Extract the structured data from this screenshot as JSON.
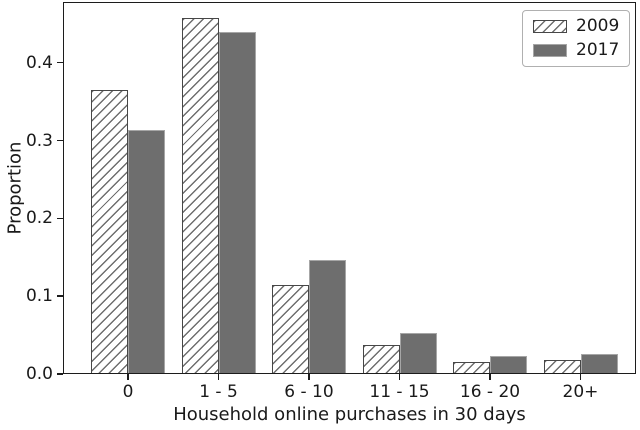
{
  "colors": {
    "spine": "#1c1c1c",
    "text": "#1a1a1a",
    "bar_2009_edge": "#474747",
    "hatch_line": "#6e6e6e",
    "bar_2017_fill": "#6e6e6e",
    "bar_2017_edge": "#a6a6a6",
    "legend_border": "#b0b0b0"
  },
  "chart_data": {
    "type": "bar",
    "title": "",
    "xlabel": "Household online purchases in 30 days",
    "ylabel": "Proportion",
    "categories": [
      "0",
      "1 - 5",
      "6 - 10",
      "11 - 15",
      "16 - 20",
      "20+"
    ],
    "series": [
      {
        "name": "2009",
        "style": "white-hatched-diagonal",
        "values": [
          0.365,
          0.457,
          0.115,
          0.037,
          0.015,
          0.018
        ]
      },
      {
        "name": "2017",
        "style": "solid-gray",
        "values": [
          0.314,
          0.439,
          0.147,
          0.053,
          0.023,
          0.026
        ]
      }
    ],
    "ylim": [
      0,
      0.478
    ],
    "yticks": [
      0.0,
      0.1,
      0.2,
      0.3,
      0.4
    ],
    "ytick_labels": [
      "0.0",
      "0.1",
      "0.2",
      "0.3",
      "0.4"
    ],
    "grid": false,
    "legend_position": "upper right"
  }
}
